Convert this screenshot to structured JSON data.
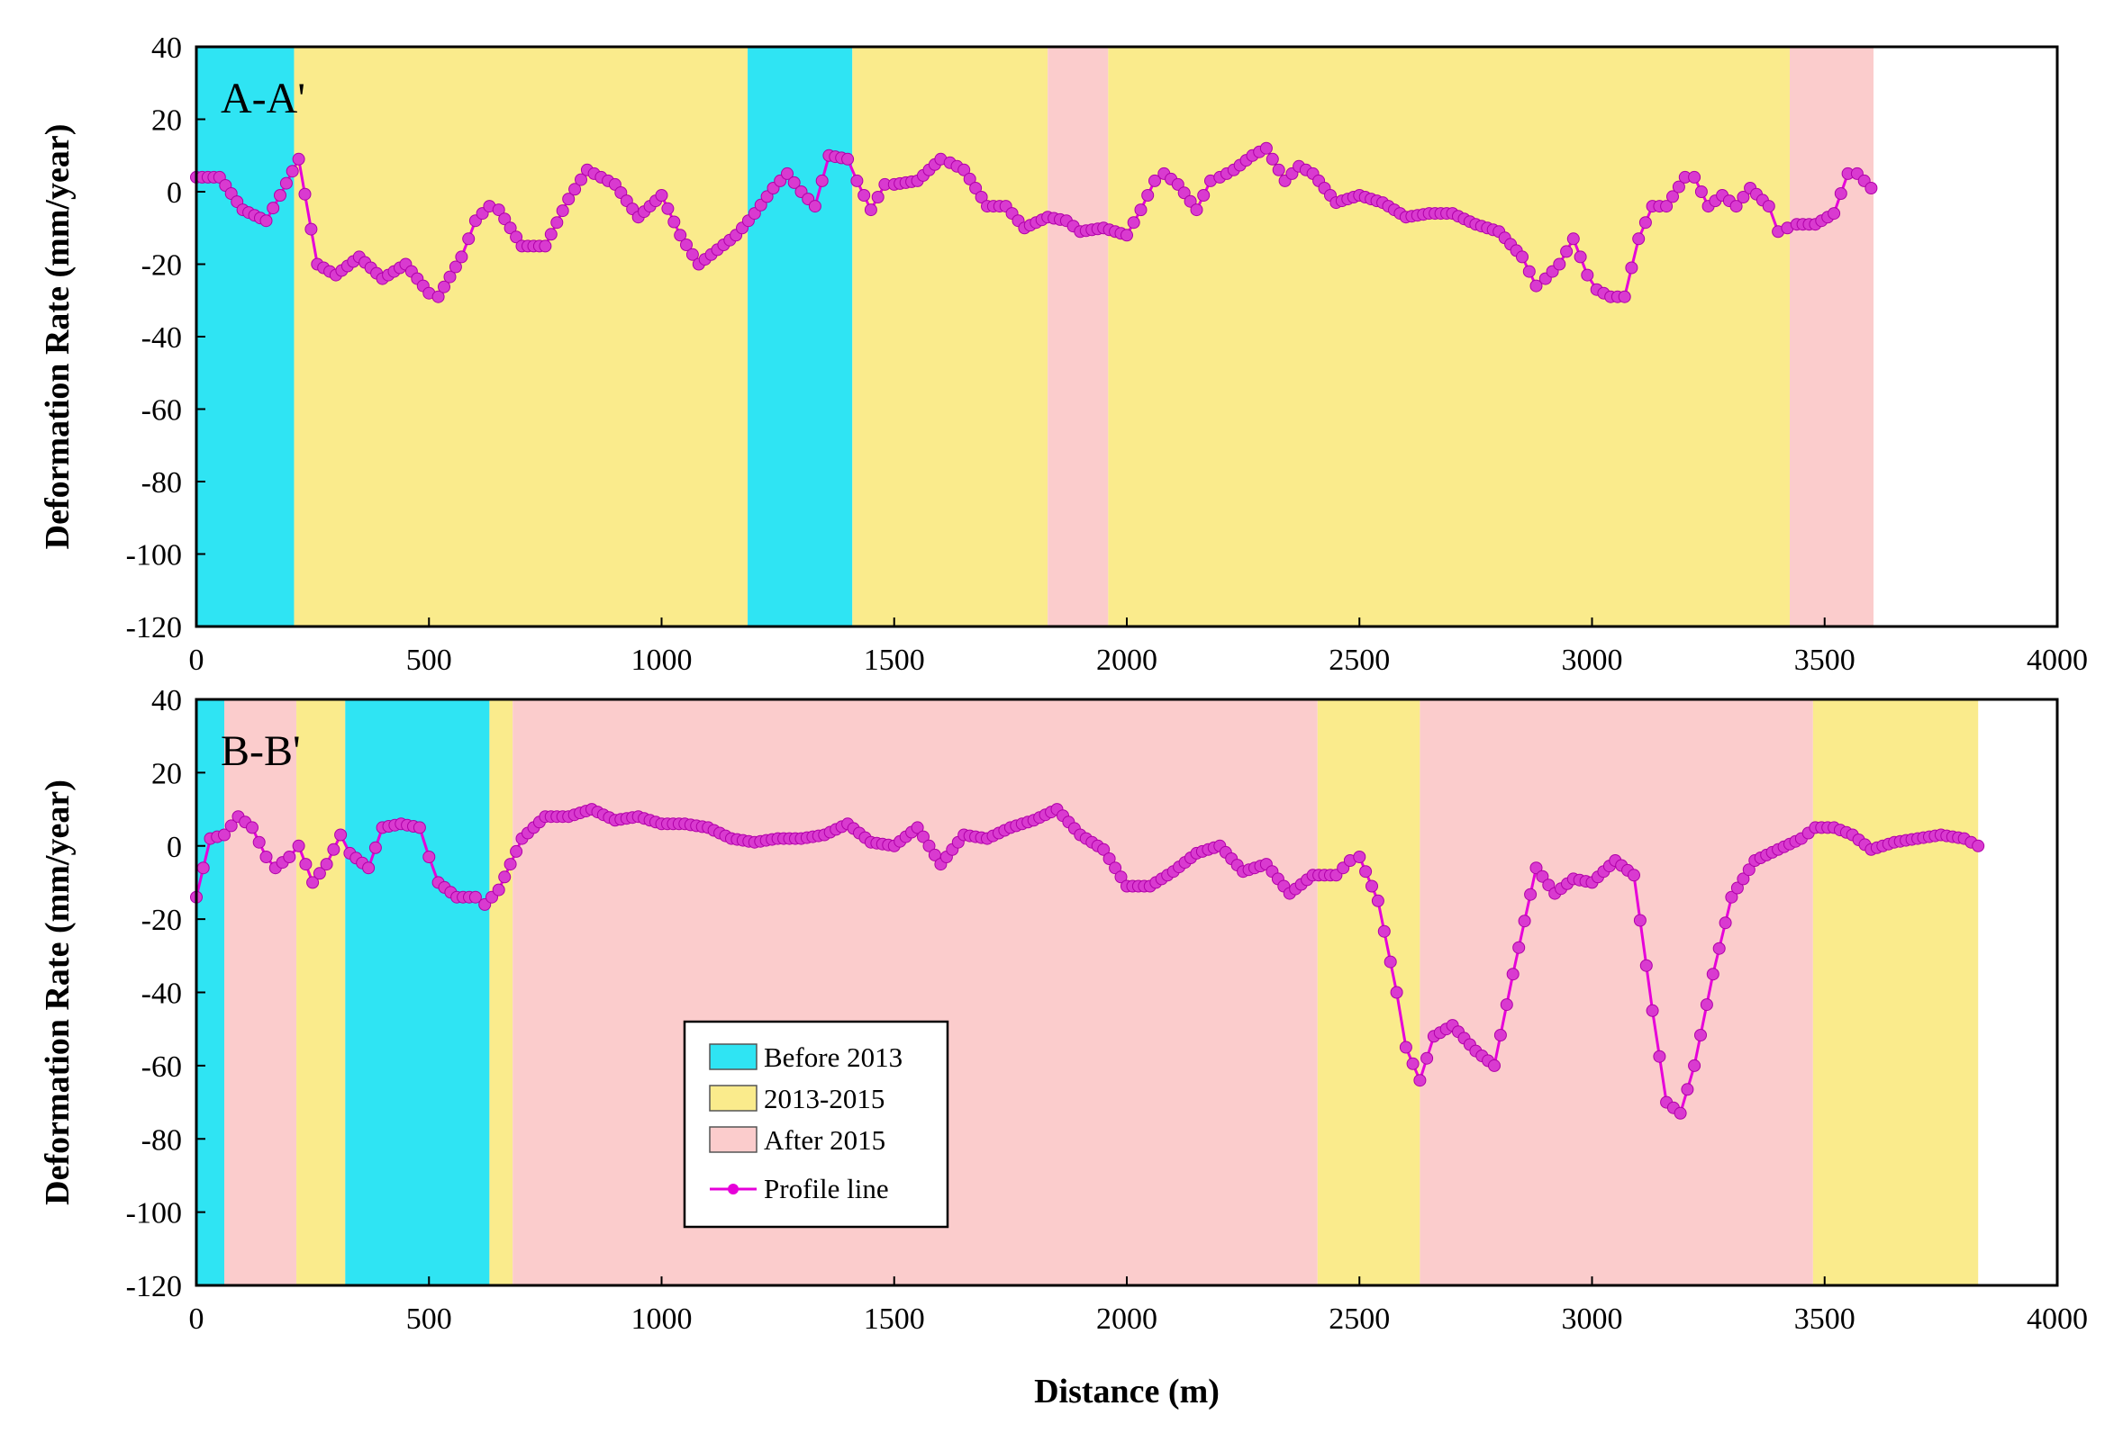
{
  "chart_data": [
    {
      "type": "line",
      "panel_label": "A-A'",
      "xlabel": "",
      "ylabel": "Deformation Rate (mm/year)",
      "xlim": [
        0,
        4000
      ],
      "ylim": [
        -120,
        40
      ],
      "x_ticks": [
        "0",
        "500",
        "1000",
        "1500",
        "2000",
        "2500",
        "3000",
        "3500",
        "4000"
      ],
      "y_ticks": [
        "40",
        "20",
        "0",
        "-20",
        "-40",
        "-60",
        "-80",
        "-100",
        "-120"
      ],
      "periods": [
        {
          "start": 0,
          "end": 210,
          "category": "Before 2013"
        },
        {
          "start": 210,
          "end": 1185,
          "category": "2013-2015"
        },
        {
          "start": 1185,
          "end": 1410,
          "category": "Before 2013"
        },
        {
          "start": 1410,
          "end": 1830,
          "category": "2013-2015"
        },
        {
          "start": 1830,
          "end": 1960,
          "category": "After 2015"
        },
        {
          "start": 1960,
          "end": 3425,
          "category": "2013-2015"
        },
        {
          "start": 3425,
          "end": 3605,
          "category": "After 2015"
        }
      ],
      "series": [
        {
          "name": "Profile line",
          "x": [
            0,
            50,
            100,
            150,
            180,
            220,
            260,
            300,
            350,
            400,
            450,
            500,
            520,
            570,
            600,
            630,
            650,
            700,
            750,
            800,
            840,
            870,
            900,
            950,
            1000,
            1040,
            1080,
            1120,
            1160,
            1200,
            1240,
            1270,
            1300,
            1330,
            1360,
            1400,
            1420,
            1450,
            1480,
            1500,
            1550,
            1600,
            1620,
            1650,
            1700,
            1740,
            1780,
            1830,
            1870,
            1900,
            1950,
            2000,
            2030,
            2060,
            2080,
            2110,
            2150,
            2180,
            2200,
            2230,
            2270,
            2300,
            2340,
            2370,
            2400,
            2450,
            2500,
            2550,
            2600,
            2650,
            2700,
            2750,
            2800,
            2850,
            2880,
            2900,
            2930,
            2960,
            2990,
            3010,
            3040,
            3070,
            3100,
            3130,
            3160,
            3200,
            3220,
            3250,
            3280,
            3310,
            3340,
            3380,
            3400,
            3420,
            3440,
            3480,
            3520,
            3550,
            3570,
            3600
          ],
          "y": [
            4,
            4,
            -5,
            -8,
            -1,
            9,
            -20,
            -23,
            -18,
            -24,
            -20,
            -28,
            -29,
            -18,
            -8,
            -4,
            -5,
            -15,
            -15,
            -2,
            6,
            4,
            2,
            -7,
            -1,
            -12,
            -20,
            -16,
            -12,
            -6,
            1,
            5,
            0,
            -4,
            10,
            9,
            3,
            -5,
            2,
            2,
            3,
            9,
            8,
            6,
            -4,
            -4,
            -10,
            -7,
            -8,
            -11,
            -10,
            -12,
            -5,
            3,
            5,
            2,
            -5,
            3,
            4,
            6,
            10,
            12,
            3,
            7,
            5,
            -3,
            -1,
            -3,
            -7,
            -6,
            -6,
            -9,
            -11,
            -18,
            -26,
            -24,
            -20,
            -13,
            -23,
            -27,
            -29,
            -29,
            -13,
            -4,
            -4,
            4,
            4,
            -4,
            -1,
            -4,
            1,
            -4,
            -11,
            -10,
            -9,
            -9,
            -6,
            5,
            5,
            1
          ]
        }
      ]
    },
    {
      "type": "line",
      "panel_label": "B-B'",
      "xlabel": "Distance (m)",
      "ylabel": "Deformation Rate (mm/year)",
      "xlim": [
        0,
        4000
      ],
      "ylim": [
        -120,
        40
      ],
      "x_ticks": [
        "0",
        "500",
        "1000",
        "1500",
        "2000",
        "2500",
        "3000",
        "3500",
        "4000"
      ],
      "y_ticks": [
        "40",
        "20",
        "0",
        "-20",
        "-40",
        "-60",
        "-80",
        "-100",
        "-120"
      ],
      "periods": [
        {
          "start": 0,
          "end": 60,
          "category": "Before 2013"
        },
        {
          "start": 60,
          "end": 215,
          "category": "After 2015"
        },
        {
          "start": 215,
          "end": 320,
          "category": "2013-2015"
        },
        {
          "start": 320,
          "end": 630,
          "category": "Before 2013"
        },
        {
          "start": 630,
          "end": 680,
          "category": "2013-2015"
        },
        {
          "start": 680,
          "end": 2410,
          "category": "After 2015"
        },
        {
          "start": 2410,
          "end": 2630,
          "category": "2013-2015"
        },
        {
          "start": 2630,
          "end": 3475,
          "category": "After 2015"
        },
        {
          "start": 3475,
          "end": 3830,
          "category": "2013-2015"
        }
      ],
      "series": [
        {
          "name": "Profile line",
          "x": [
            0,
            30,
            60,
            90,
            120,
            150,
            170,
            200,
            220,
            250,
            280,
            310,
            330,
            370,
            400,
            440,
            480,
            500,
            520,
            560,
            600,
            620,
            650,
            700,
            750,
            800,
            850,
            900,
            950,
            1000,
            1050,
            1100,
            1150,
            1200,
            1250,
            1300,
            1350,
            1400,
            1450,
            1500,
            1550,
            1600,
            1650,
            1700,
            1750,
            1800,
            1850,
            1900,
            1950,
            2000,
            2050,
            2100,
            2150,
            2200,
            2250,
            2300,
            2350,
            2400,
            2450,
            2480,
            2500,
            2540,
            2580,
            2600,
            2630,
            2660,
            2700,
            2750,
            2790,
            2830,
            2880,
            2920,
            2960,
            3000,
            3050,
            3090,
            3130,
            3160,
            3190,
            3220,
            3260,
            3300,
            3350,
            3400,
            3450,
            3480,
            3520,
            3560,
            3600,
            3650,
            3700,
            3750,
            3800,
            3830
          ],
          "y": [
            -14,
            2,
            3,
            8,
            5,
            -3,
            -6,
            -3,
            0,
            -10,
            -5,
            3,
            -2,
            -6,
            5,
            6,
            5,
            -3,
            -10,
            -14,
            -14,
            -16,
            -12,
            2,
            8,
            8,
            10,
            7,
            8,
            6,
            6,
            5,
            2,
            1,
            2,
            2,
            3,
            6,
            1,
            0,
            5,
            -5,
            3,
            2,
            5,
            7,
            10,
            3,
            -1,
            -11,
            -11,
            -7,
            -2,
            0,
            -7,
            -5,
            -13,
            -8,
            -8,
            -4,
            -3,
            -15,
            -40,
            -55,
            -64,
            -52,
            -49,
            -56,
            -60,
            -35,
            -6,
            -13,
            -9,
            -10,
            -4,
            -8,
            -45,
            -70,
            -73,
            -60,
            -35,
            -14,
            -4,
            -1,
            2,
            5,
            5,
            3,
            -1,
            1,
            2,
            3,
            2,
            0
          ]
        }
      ]
    }
  ],
  "legend": {
    "items": [
      {
        "label": "Before 2013",
        "color": "#2fe4f3"
      },
      {
        "label": "2013-2015",
        "color": "#faeb8c"
      },
      {
        "label": "After 2015",
        "color": "#fbcccc"
      },
      {
        "label": "Profile line",
        "color": "#e600d9"
      }
    ]
  },
  "colors": {
    "Before 2013": "#2fe4f3",
    "2013-2015": "#faeb8c",
    "After 2015": "#fbcccc",
    "line": "#e600d9",
    "marker": "#d93ad0"
  }
}
